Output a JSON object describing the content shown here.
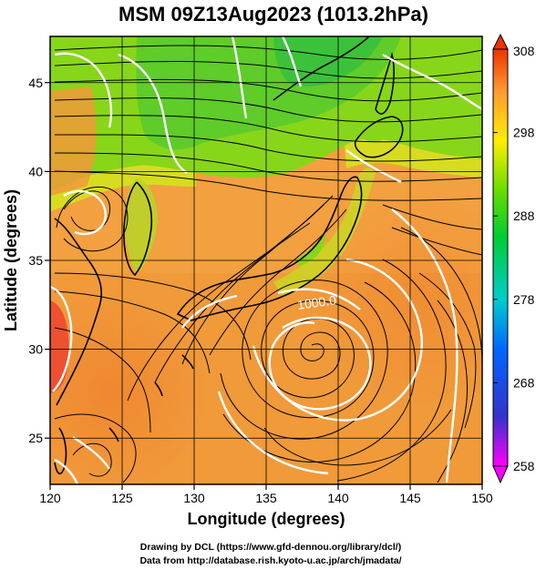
{
  "title": "MSM 09Z13Aug2023 (1013.2hPa)",
  "xlabel": "Longitude (degrees)",
  "ylabel": "Latitude  (degrees)",
  "credits": [
    "Drawing by DCL (https://www.gfd-dennou.org/library/dcl/)",
    "Data from http://database.rish.kyoto-u.ac.jp/arch/jmadata/"
  ],
  "contour_label": "1000.0",
  "chart_data": {
    "type": "heatmap",
    "variable": "temperature (K) with wind streamlines",
    "xlim": [
      120,
      150
    ],
    "ylim": [
      22.4,
      47.6
    ],
    "xticks": [
      120,
      125,
      130,
      135,
      140,
      145,
      150
    ],
    "yticks": [
      25,
      30,
      35,
      40,
      45
    ],
    "grid": true,
    "colorbar": {
      "min": 258,
      "max": 308,
      "ticks": [
        308,
        298,
        288,
        278,
        268,
        258
      ],
      "colors": [
        "#ff00ff",
        "#3333cc",
        "#0066ff",
        "#00cccc",
        "#00cc33",
        "#66dd00",
        "#ffee00",
        "#ff9933",
        "#ee3300"
      ],
      "extend": "both"
    },
    "cyclone_center": {
      "lon": 138.5,
      "lat": 31.0
    }
  }
}
